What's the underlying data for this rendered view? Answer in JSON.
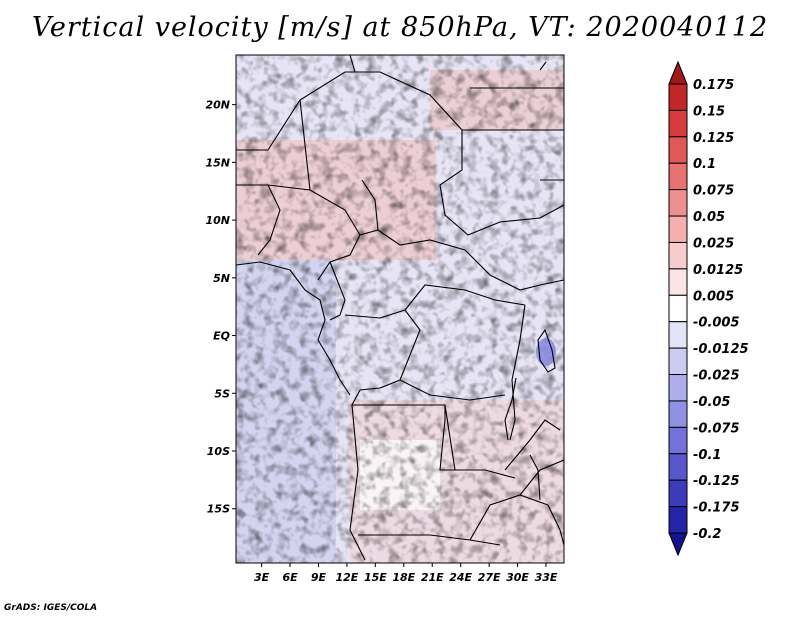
{
  "title": "Vertical velocity [m/s] at 850hPa, VT: 2020040112",
  "credit": "GrADS: IGES/COLA",
  "map": {
    "variable": "Vertical velocity",
    "units": "m/s",
    "level": "850hPa",
    "valid_time": "2020040112",
    "lat_labels": [
      "20N",
      "15N",
      "10N",
      "5N",
      "EQ",
      "5S",
      "10S",
      "15S"
    ],
    "lat_values": [
      20,
      15,
      10,
      5,
      0,
      -5,
      -10,
      -15
    ],
    "lon_labels": [
      "3E",
      "6E",
      "9E",
      "12E",
      "15E",
      "18E",
      "21E",
      "24E",
      "27E",
      "30E",
      "33E"
    ],
    "lon_values": [
      3,
      6,
      9,
      12,
      15,
      18,
      21,
      24,
      27,
      30,
      33
    ],
    "lat_range": [
      -19.7,
      24.3
    ],
    "lon_range": [
      0.3,
      34.9
    ]
  },
  "colorbar": {
    "labels": [
      "0.175",
      "0.15",
      "0.125",
      "0.1",
      "0.075",
      "0.05",
      "0.025",
      "0.0125",
      "0.005",
      "-0.005",
      "-0.0125",
      "-0.025",
      "-0.05",
      "-0.075",
      "-0.1",
      "-0.125",
      "-0.175",
      "-0.2"
    ],
    "colors": [
      "#a01818",
      "#c02828",
      "#d63c3c",
      "#e05858",
      "#e87272",
      "#ef9090",
      "#f4aeae",
      "#f8cccc",
      "#fbe4e4",
      "#ffffff",
      "#e4e4f8",
      "#ccccf2",
      "#aeaeec",
      "#9090e4",
      "#7272da",
      "#5858cc",
      "#3c3cba",
      "#2424a8",
      "#14148e"
    ]
  }
}
